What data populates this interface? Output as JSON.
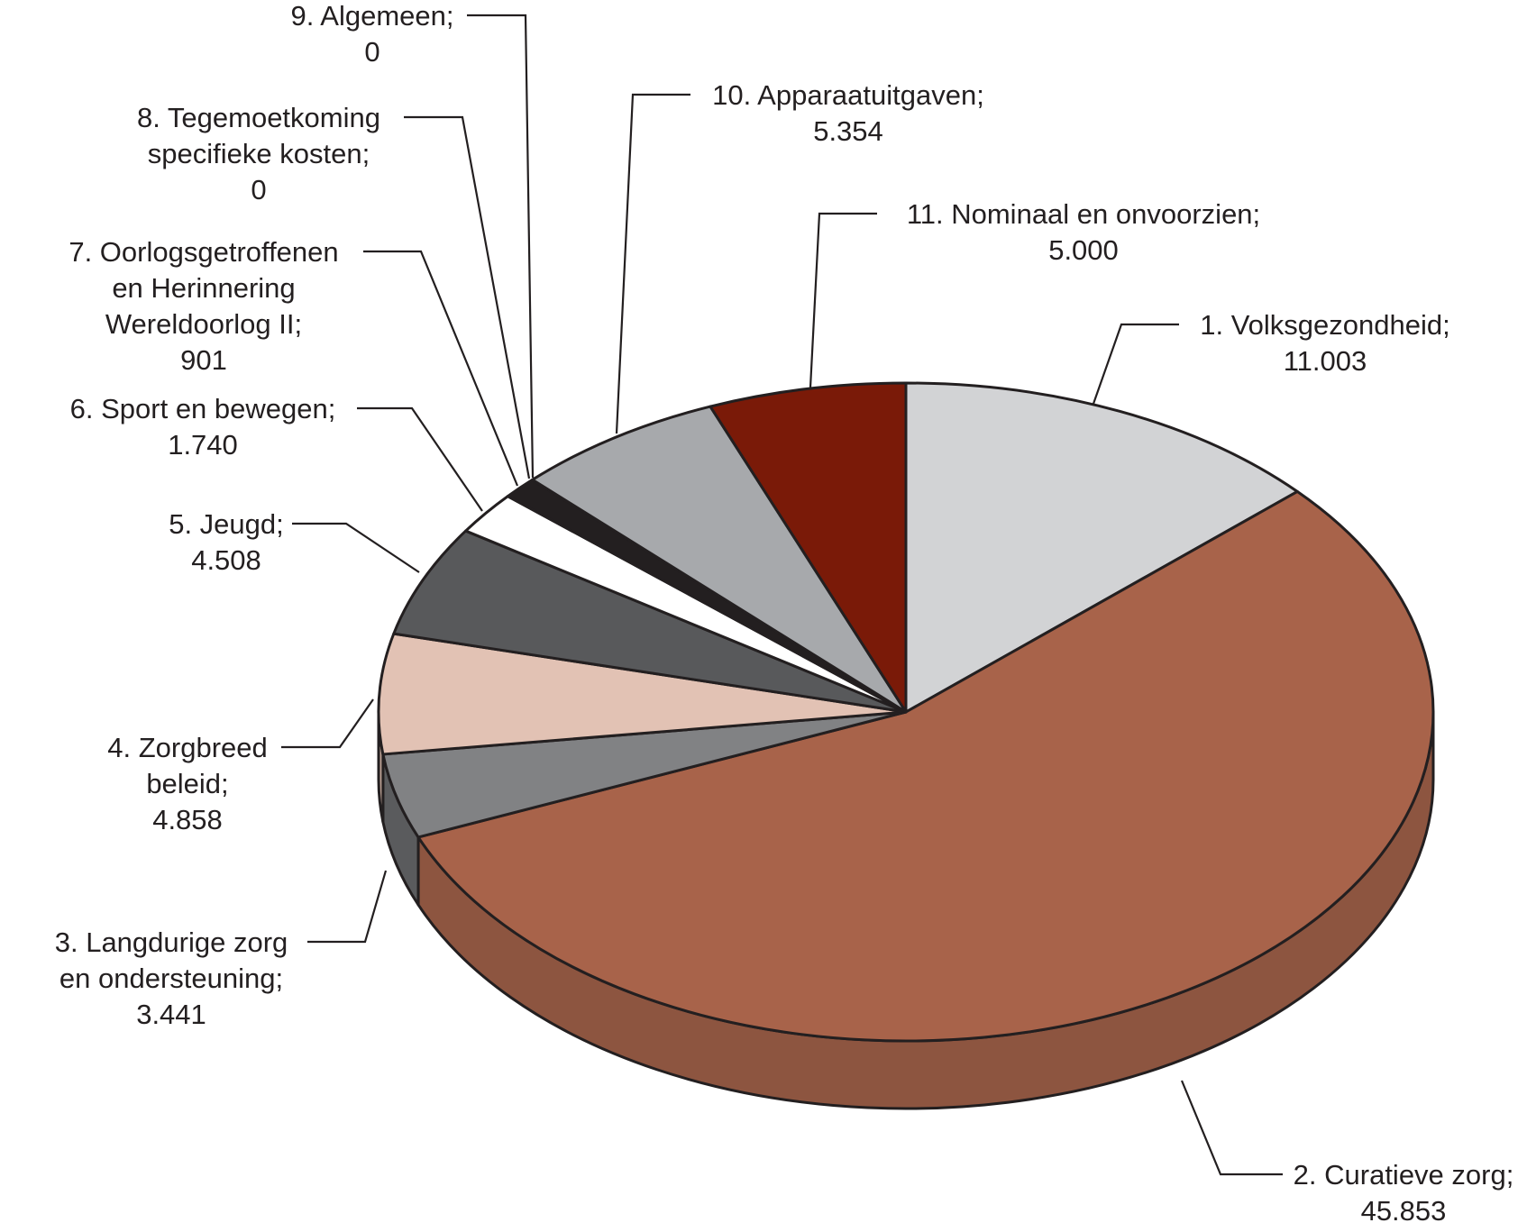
{
  "chart_data": {
    "type": "pie",
    "title": "",
    "slices": [
      {
        "label_lines": [
          "1. Volksgezondheid;",
          "11.003"
        ],
        "name": "1. Volksgezondheid",
        "value": 11003,
        "color": "#d2d3d5",
        "side_color": "#a9aaac"
      },
      {
        "label_lines": [
          "2. Curatieve zorg;",
          "45.853"
        ],
        "name": "2. Curatieve zorg",
        "value": 45853,
        "color": "#a8634a",
        "side_color": "#8d5540"
      },
      {
        "label_lines": [
          "3. Langdurige zorg",
          "en ondersteuning;",
          "3.441"
        ],
        "name": "3. Langdurige zorg en ondersteuning",
        "value": 3441,
        "color": "#818284",
        "side_color": "#5a5b5d"
      },
      {
        "label_lines": [
          "4. Zorgbreed",
          "beleid;",
          "4.858"
        ],
        "name": "4. Zorgbreed beleid",
        "value": 4858,
        "color": "#e2c2b4",
        "side_color": "#bda295"
      },
      {
        "label_lines": [
          "5. Jeugd;",
          "4.508"
        ],
        "name": "5. Jeugd",
        "value": 4508,
        "color": "#58595b",
        "side_color": "#414244"
      },
      {
        "label_lines": [
          "6. Sport en bewegen;",
          "1.740"
        ],
        "name": "6. Sport en bewegen",
        "value": 1740,
        "color": "#ffffff",
        "side_color": "#e6e6e6"
      },
      {
        "label_lines": [
          "7. Oorlogsgetroffenen",
          "en Herinnering",
          "Wereldoorlog II;",
          "901"
        ],
        "name": "7. Oorlogsgetroffenen en Herinnering Wereldoorlog II",
        "value": 901,
        "color": "#231f20",
        "side_color": "#111111"
      },
      {
        "label_lines": [
          "8. Tegemoetkoming",
          "specifieke kosten;",
          "0"
        ],
        "name": "8. Tegemoetkoming specifieke kosten",
        "value": 0,
        "color": "#231f20",
        "side_color": "#111111"
      },
      {
        "label_lines": [
          "9. Algemeen;",
          "0"
        ],
        "name": "9. Algemeen",
        "value": 0,
        "color": "#231f20",
        "side_color": "#111111"
      },
      {
        "label_lines": [
          "10. Apparaatuitgaven;",
          "5.354"
        ],
        "name": "10. Apparaatuitgaven",
        "value": 5354,
        "color": "#a7a9ac",
        "side_color": "#86888a"
      },
      {
        "label_lines": [
          "11. Nominaal en onvoorzien;",
          "5.000"
        ],
        "name": "11. Nominaal en onvoorzien",
        "value": 5000,
        "color": "#7a1a08",
        "side_color": "#5e1406"
      }
    ]
  }
}
